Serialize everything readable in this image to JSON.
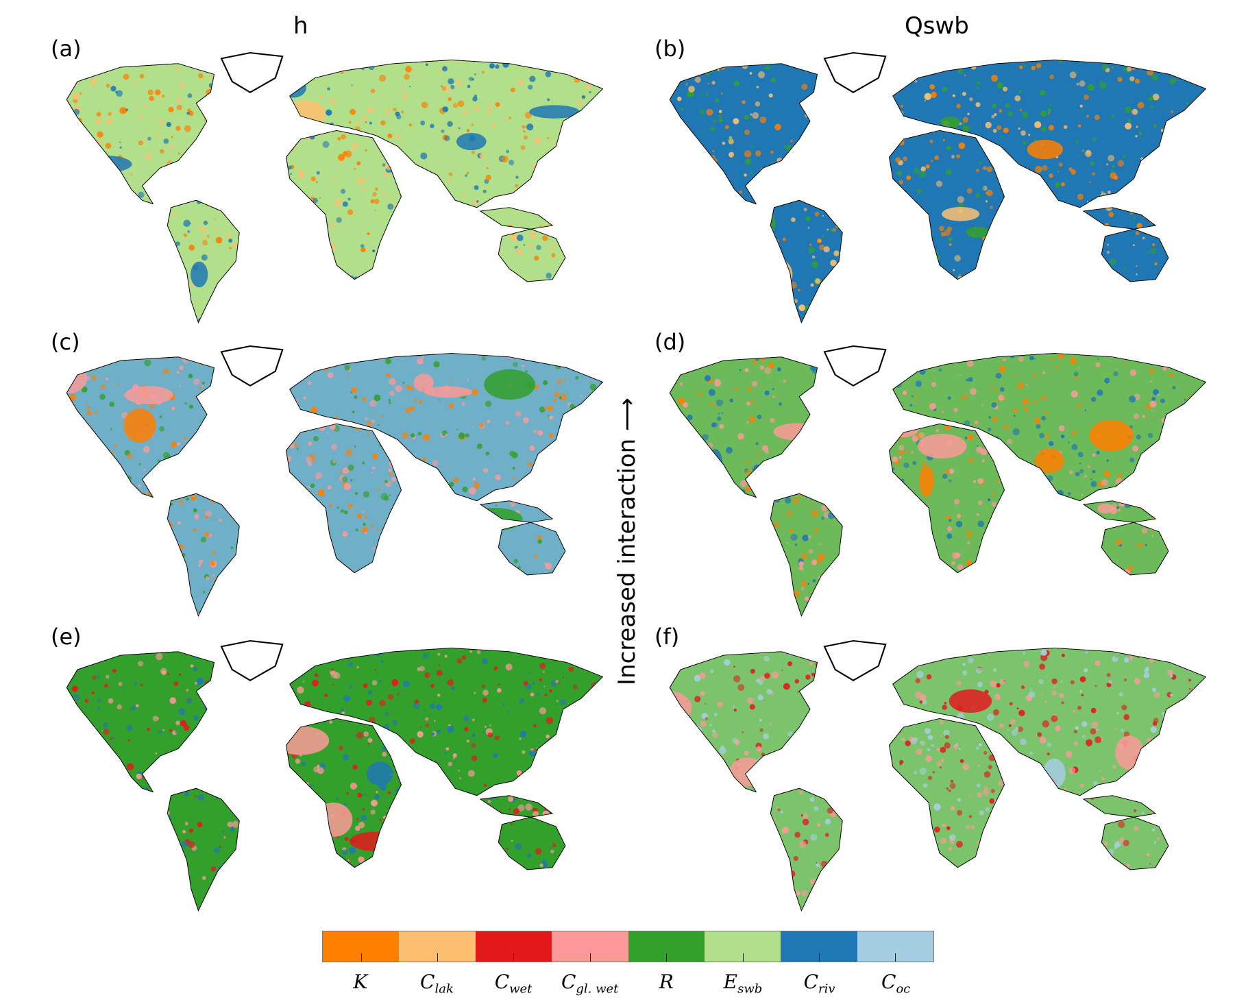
{
  "columns": [
    {
      "title": "h"
    },
    {
      "title": "Qswb"
    }
  ],
  "panels": [
    {
      "label": "(a)",
      "dominant": "#b2df8a",
      "accents": [
        "#ff7f00",
        "#1f78b4",
        "#fdbf6f"
      ]
    },
    {
      "label": "(b)",
      "dominant": "#1f78b4",
      "accents": [
        "#fdbf6f",
        "#ff7f00",
        "#33a02c"
      ]
    },
    {
      "label": "(c)",
      "dominant": "#6fb0c8",
      "accents": [
        "#ff7f00",
        "#33a02c",
        "#fb9a99"
      ]
    },
    {
      "label": "(d)",
      "dominant": "#6cba5a",
      "accents": [
        "#fb9a99",
        "#ff7f00",
        "#1f78b4"
      ]
    },
    {
      "label": "(e)",
      "dominant": "#33a02c",
      "accents": [
        "#e31a1c",
        "#1f78b4",
        "#fb9a99"
      ]
    },
    {
      "label": "(f)",
      "dominant": "#7cc46b",
      "accents": [
        "#fb9a99",
        "#e31a1c",
        "#a6cee3"
      ]
    }
  ],
  "vertical_note": "Increased interaction ⟶",
  "legend": [
    {
      "base": "K",
      "sub": "",
      "color": "#ff7f00"
    },
    {
      "base": "C",
      "sub": "lak",
      "color": "#fdbf6f"
    },
    {
      "base": "C",
      "sub": "wet",
      "color": "#e31a1c"
    },
    {
      "base": "C",
      "sub": "gl. wet",
      "color": "#fb9a99"
    },
    {
      "base": "R",
      "sub": "",
      "color": "#33a02c"
    },
    {
      "base": "E",
      "sub": "swb",
      "color": "#b2df8a"
    },
    {
      "base": "C",
      "sub": "riv",
      "color": "#1f78b4"
    },
    {
      "base": "C",
      "sub": "oc",
      "color": "#a6cee3"
    }
  ]
}
